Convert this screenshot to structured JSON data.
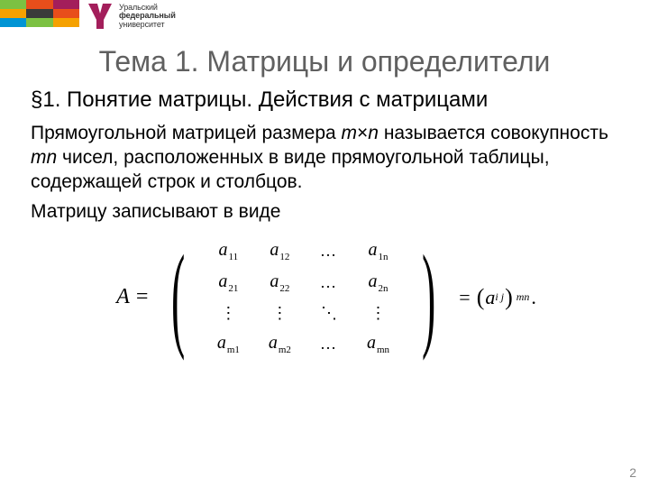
{
  "header": {
    "color_rows": [
      [
        "#7cc142",
        "#e84e1b",
        "#a31e5b"
      ],
      [
        "#f5a100",
        "#3a3a3a",
        "#e84e1b"
      ],
      [
        "#0094d4",
        "#7cc142",
        "#f5a100"
      ]
    ],
    "logo_text_l1": "Уральский",
    "logo_text_l2": "федеральный",
    "logo_text_l3": "университет",
    "logo_fill": "#a31e5b"
  },
  "title": "Тема 1. Матрицы и определители",
  "subtitle": "§1. Понятие матрицы. Действия с матрицами",
  "paragraph": {
    "p1a": "Прямоугольной матрицей размера  ",
    "p1_m": "m",
    "p1_x": "×",
    "p1_n": "n",
    "p1b": " называется совокупность  ",
    "p1_mn": "mn",
    "p1c": " чисел, расположенных в виде прямоугольной таблицы, содержащей   строк и   столбцов.",
    "p2": "Матрицу записывают в виде"
  },
  "matrix": {
    "lhs": "A =",
    "cells": [
      [
        {
          "a": "a",
          "s": "11"
        },
        {
          "a": "a",
          "s": "12"
        },
        {
          "dots": "…"
        },
        {
          "a": "a",
          "s": "1n"
        }
      ],
      [
        {
          "a": "a",
          "s": "21"
        },
        {
          "a": "a",
          "s": "22"
        },
        {
          "dots": "…"
        },
        {
          "a": "a",
          "s": "2n"
        }
      ],
      [
        {
          "vdots": "⋮"
        },
        {
          "vdots": "⋮"
        },
        {
          "ddots": "⋱"
        },
        {
          "vdots": "⋮"
        }
      ],
      [
        {
          "a": "a",
          "s": "m1"
        },
        {
          "a": "a",
          "s": "m2"
        },
        {
          "dots": "…"
        },
        {
          "a": "a",
          "s": "mn"
        }
      ]
    ],
    "rhs_eq": "=",
    "rhs_open": "(",
    "rhs_a": "a",
    "rhs_sub": "i j",
    "rhs_close": ")",
    "rhs_outer_sub": "mn",
    "rhs_period": "."
  },
  "page_number": "2"
}
